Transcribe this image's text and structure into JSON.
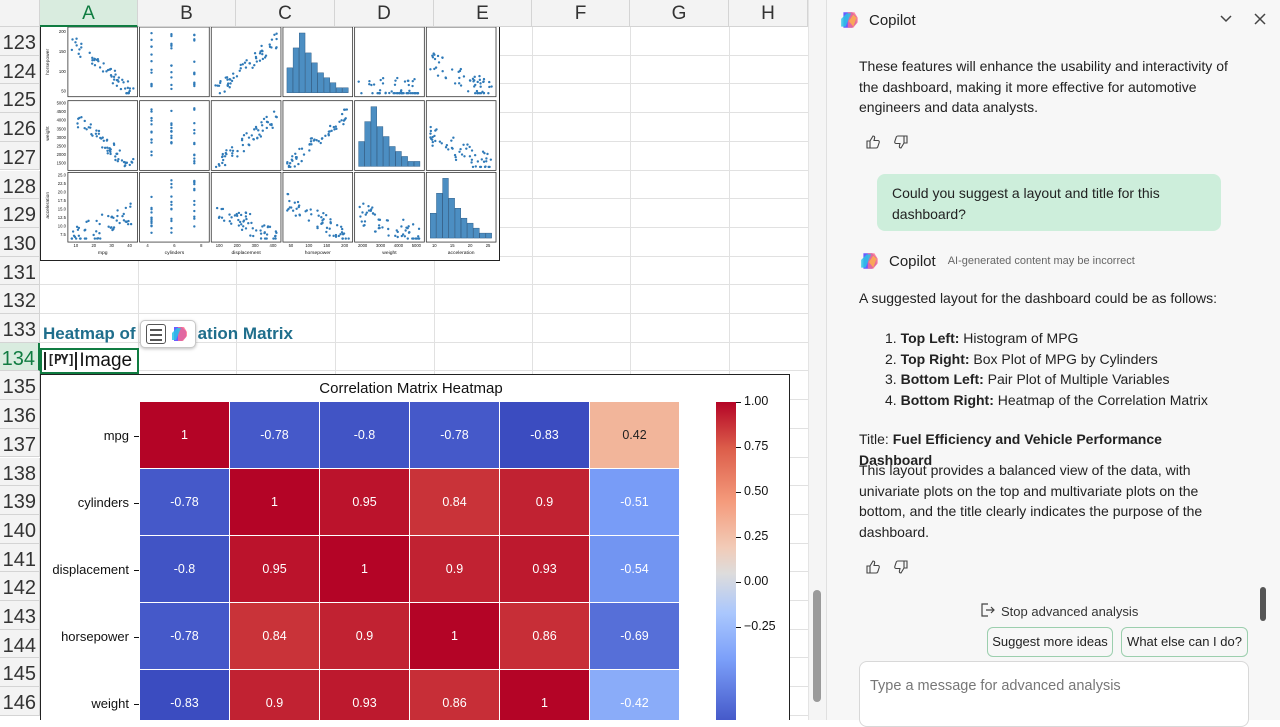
{
  "sheet": {
    "columns": [
      "A",
      "B",
      "C",
      "D",
      "E",
      "F",
      "G",
      "H"
    ],
    "rows": [
      "123",
      "124",
      "125",
      "126",
      "127",
      "128",
      "129",
      "130",
      "131",
      "132",
      "133",
      "134",
      "135",
      "136",
      "137",
      "138",
      "139",
      "140",
      "141",
      "142",
      "143",
      "144",
      "145",
      "146"
    ],
    "heading_text": "Heatmap of",
    "heading_text_right": "ation Matrix",
    "active_cell_value": "Image",
    "active_cell_prefix": "[PY]"
  },
  "pairplot": {
    "row_labels": [
      "horsepower",
      "weight",
      "acceleration"
    ],
    "x_labels": [
      "mpg",
      "cylinders",
      "displacement",
      "horsepower",
      "weight",
      "acceleration"
    ],
    "x_ticks": [
      [
        "10",
        "20",
        "30",
        "40"
      ],
      [
        "4",
        "6",
        "8"
      ],
      [
        "100",
        "200",
        "300",
        "400"
      ],
      [
        "50",
        "100",
        "150",
        "200"
      ],
      [
        "2000",
        "3000",
        "4000",
        "5000"
      ],
      [
        "10",
        "15",
        "20",
        "25"
      ]
    ],
    "y_ticks": [
      [
        "200",
        "150",
        "100",
        "50"
      ],
      [
        "5000",
        "4500",
        "4000",
        "3500",
        "3000",
        "2500",
        "2000",
        "1500"
      ],
      [
        "25.0",
        "22.5",
        "20.0",
        "17.5",
        "15.0",
        "12.5",
        "10.0",
        "7.5"
      ]
    ]
  },
  "chart_data": {
    "type": "heatmap",
    "title": "Correlation Matrix Heatmap",
    "rows": [
      "mpg",
      "cylinders",
      "displacement",
      "horsepower",
      "weight"
    ],
    "cols_visible": 6,
    "values": [
      [
        1,
        -0.78,
        -0.8,
        -0.78,
        -0.83,
        0.42
      ],
      [
        -0.78,
        1,
        0.95,
        0.84,
        0.9,
        -0.51
      ],
      [
        -0.8,
        0.95,
        1,
        0.9,
        0.93,
        -0.54
      ],
      [
        -0.78,
        0.84,
        0.9,
        1,
        0.86,
        -0.69
      ],
      [
        -0.83,
        0.9,
        0.93,
        0.86,
        1,
        -0.42
      ]
    ],
    "colorbar_ticks": [
      "1.00",
      "0.75",
      "0.50",
      "0.25",
      "0.00",
      "−0.25"
    ],
    "colorbar_range": [
      -0.83,
      1.0
    ],
    "colormap": "coolwarm"
  },
  "copilot": {
    "title": "Copilot",
    "intro": "These features will enhance the usability and interactivity of the dashboard, making it more effective for automotive engineers and data analysts.",
    "user_message": "Could you suggest a layout and title for this dashboard?",
    "response_name": "Copilot",
    "response_note": "AI-generated content may be incorrect",
    "response_lead": "A suggested layout for the dashboard could be as follows:",
    "layout_items": [
      {
        "num": "1.",
        "label": "Top Left:",
        "text": " Histogram of MPG"
      },
      {
        "num": "2.",
        "label": "Top Right:",
        "text": " Box Plot of MPG by Cylinders"
      },
      {
        "num": "3.",
        "label": "Bottom Left:",
        "text": " Pair Plot of Multiple Variables"
      },
      {
        "num": "4.",
        "label": "Bottom Right:",
        "text": " Heatmap of the Correlation Matrix"
      }
    ],
    "title_prefix": "Title: ",
    "title_value": "Fuel Efficiency and Vehicle Performance Dashboard",
    "response_body": "This layout provides a balanced view of the data, with univariate plots on the top and multivariate plots on the bottom, and the title clearly indicates the purpose of the dashboard.",
    "stop_label": "Stop advanced analysis",
    "chip_1": "Suggest more ideas",
    "chip_2": "What else can I do?",
    "input_placeholder": "Type a message for advanced analysis"
  },
  "colors": {
    "accent": "#107c41",
    "heading": "#1f6e8c",
    "bubble": "#cdeedb"
  }
}
